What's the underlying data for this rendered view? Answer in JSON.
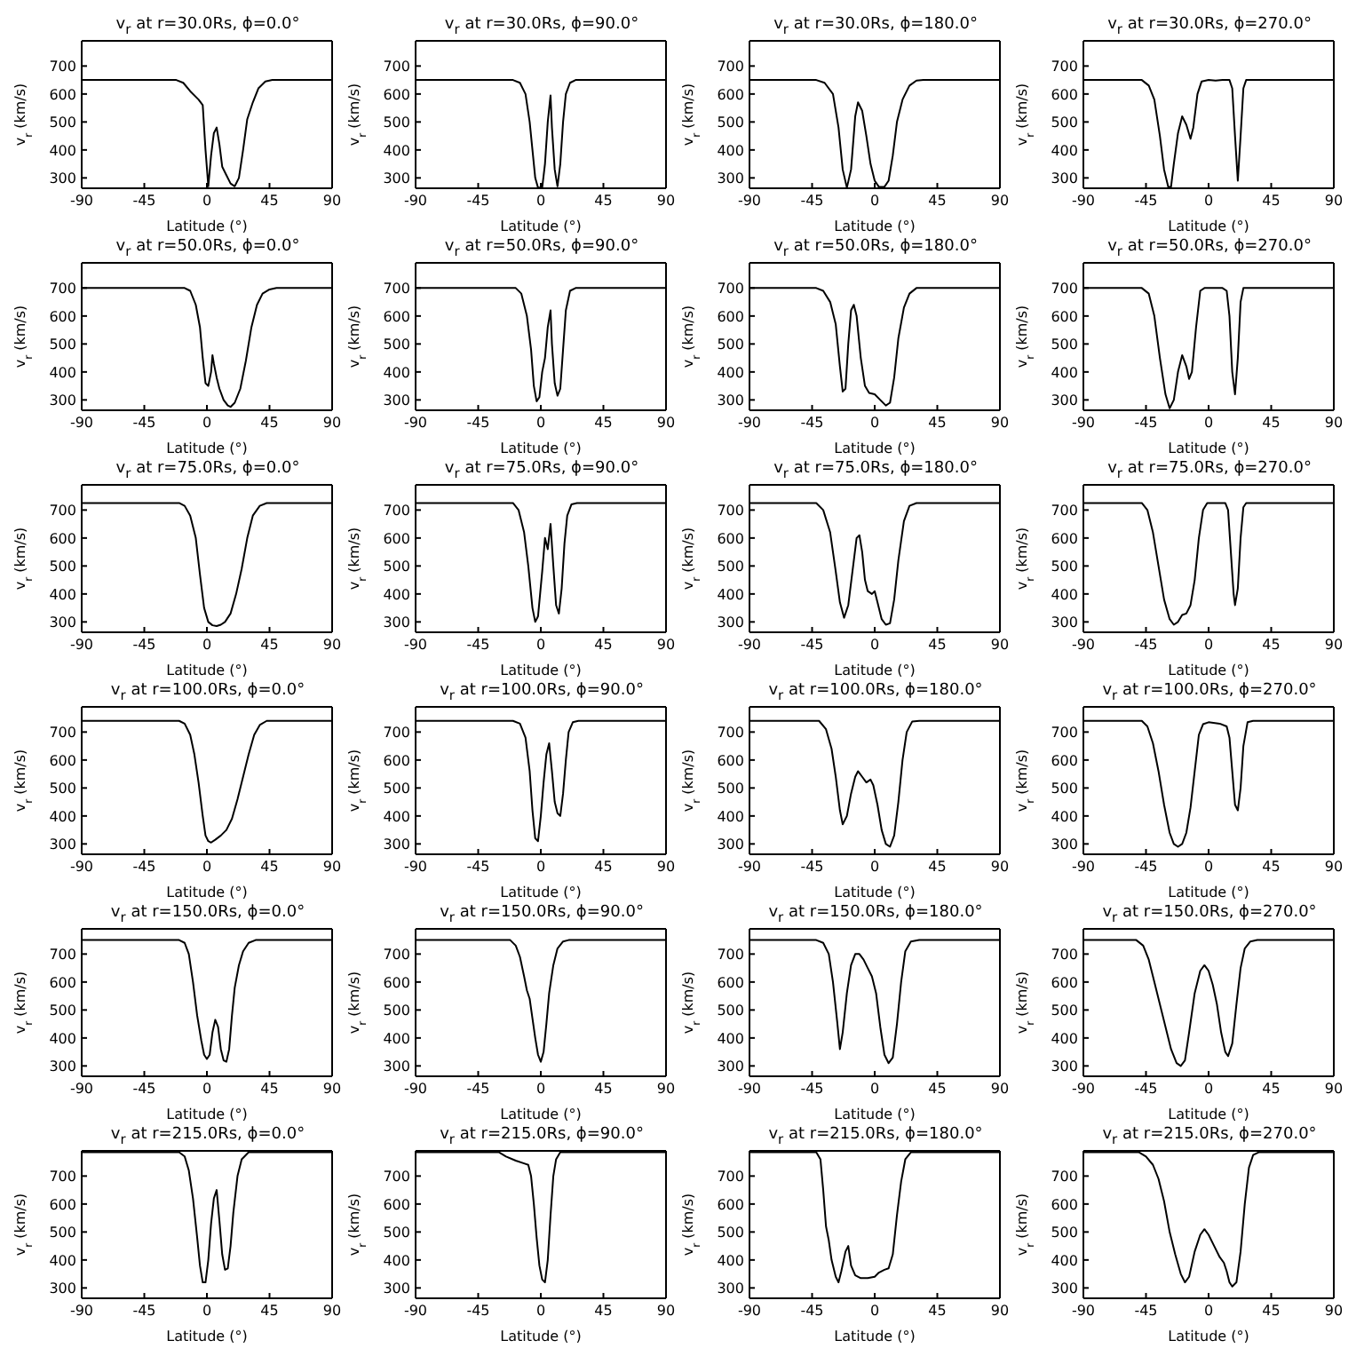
{
  "chart_data": [
    {
      "type": "line",
      "title": "v$_{r}$ at r=30.0Rs, ϕ=0.0°",
      "xlabel": "Latitude (°)",
      "ylabel": "v$_{r}$ (km/s)",
      "xlim": [
        -90,
        90
      ],
      "xticks": [
        -90,
        -45,
        0,
        45,
        90
      ],
      "ylim": [
        263,
        790
      ],
      "yticks": [
        300,
        400,
        500,
        600,
        700
      ],
      "marker": "none",
      "color": "#000000",
      "x": [
        -90,
        -22,
        -17,
        -12,
        -6,
        -3,
        -1,
        1,
        3,
        5,
        7,
        9,
        11,
        14,
        17,
        20,
        23,
        26,
        29,
        33,
        37,
        42,
        47,
        90
      ],
      "values": [
        650,
        650,
        640,
        610,
        580,
        560,
        400,
        270,
        380,
        460,
        480,
        420,
        340,
        310,
        280,
        270,
        300,
        400,
        510,
        570,
        620,
        645,
        650,
        650
      ]
    },
    {
      "type": "line",
      "title": "v$_{r}$ at r=30.0Rs, ϕ=90.0°",
      "xlabel": "Latitude (°)",
      "ylabel": "v$_{r}$ (km/s)",
      "xlim": [
        -90,
        90
      ],
      "xticks": [
        -90,
        -45,
        0,
        45,
        90
      ],
      "ylim": [
        263,
        790
      ],
      "yticks": [
        300,
        400,
        500,
        600,
        700
      ],
      "marker": "none",
      "color": "#000000",
      "x": [
        -90,
        -20,
        -15,
        -11,
        -8,
        -6,
        -4,
        -2,
        1,
        3,
        5,
        7,
        8,
        10,
        12,
        14,
        16,
        18,
        21,
        25,
        90
      ],
      "values": [
        650,
        650,
        640,
        600,
        500,
        400,
        300,
        265,
        265,
        350,
        500,
        595,
        480,
        330,
        270,
        350,
        500,
        600,
        640,
        650,
        650
      ]
    },
    {
      "type": "line",
      "title": "v$_{r}$ at r=30.0Rs, ϕ=180.0°",
      "xlabel": "Latitude (°)",
      "ylabel": "v$_{r}$ (km/s)",
      "xlim": [
        -90,
        90
      ],
      "xticks": [
        -90,
        -45,
        0,
        45,
        90
      ],
      "ylim": [
        263,
        790
      ],
      "yticks": [
        300,
        400,
        500,
        600,
        700
      ],
      "marker": "none",
      "color": "#000000",
      "x": [
        -90,
        -42,
        -36,
        -30,
        -26,
        -23,
        -20,
        -17,
        -14,
        -12,
        -9,
        -6,
        -3,
        0,
        3,
        7,
        10,
        13,
        16,
        20,
        25,
        30,
        35,
        90
      ],
      "values": [
        650,
        650,
        640,
        600,
        480,
        330,
        265,
        330,
        520,
        570,
        540,
        450,
        350,
        290,
        268,
        268,
        290,
        380,
        500,
        580,
        630,
        648,
        650,
        650
      ]
    },
    {
      "type": "line",
      "title": "v$_{r}$ at r=30.0Rs, ϕ=270.0°",
      "xlabel": "Latitude (°)",
      "ylabel": "v$_{r}$ (km/s)",
      "xlim": [
        -90,
        90
      ],
      "xticks": [
        -90,
        -45,
        0,
        45,
        90
      ],
      "ylim": [
        263,
        790
      ],
      "yticks": [
        300,
        400,
        500,
        600,
        700
      ],
      "marker": "none",
      "color": "#000000",
      "x": [
        -90,
        -48,
        -43,
        -39,
        -35,
        -32,
        -29,
        -27,
        -25,
        -22,
        -19,
        -16,
        -13,
        -11,
        -8,
        -5,
        0,
        5,
        10,
        15,
        17,
        19,
        21,
        23,
        25,
        27,
        90
      ],
      "values": [
        650,
        650,
        630,
        580,
        450,
        330,
        268,
        268,
        350,
        460,
        520,
        490,
        440,
        480,
        600,
        645,
        650,
        648,
        650,
        650,
        620,
        450,
        290,
        450,
        620,
        650,
        650
      ]
    },
    {
      "type": "line",
      "title": "v$_{r}$ at r=50.0Rs, ϕ=0.0°",
      "xlabel": "Latitude (°)",
      "ylabel": "v$_{r}$ (km/s)",
      "xlim": [
        -90,
        90
      ],
      "xticks": [
        -90,
        -45,
        0,
        45,
        90
      ],
      "ylim": [
        263,
        790
      ],
      "yticks": [
        300,
        400,
        500,
        600,
        700
      ],
      "marker": "none",
      "color": "#000000",
      "x": [
        -90,
        -16,
        -12,
        -8,
        -5,
        -3,
        -1,
        1,
        3,
        4,
        5,
        7,
        9,
        12,
        15,
        17,
        20,
        24,
        28,
        32,
        36,
        40,
        45,
        50,
        90
      ],
      "values": [
        700,
        700,
        690,
        640,
        560,
        450,
        360,
        350,
        400,
        460,
        430,
        380,
        340,
        300,
        280,
        275,
        290,
        340,
        440,
        560,
        640,
        680,
        695,
        700,
        700
      ]
    },
    {
      "type": "line",
      "title": "v$_{r}$ at r=50.0Rs, ϕ=90.0°",
      "xlabel": "Latitude (°)",
      "ylabel": "v$_{r}$ (km/s)",
      "xlim": [
        -90,
        90
      ],
      "xticks": [
        -90,
        -45,
        0,
        45,
        90
      ],
      "ylim": [
        263,
        790
      ],
      "yticks": [
        300,
        400,
        500,
        600,
        700
      ],
      "marker": "none",
      "color": "#000000",
      "x": [
        -90,
        -18,
        -14,
        -10,
        -7,
        -5,
        -3,
        -1,
        1,
        3,
        5,
        7,
        8,
        10,
        12,
        14,
        16,
        18,
        21,
        25,
        90
      ],
      "values": [
        700,
        700,
        680,
        600,
        480,
        350,
        295,
        310,
        400,
        450,
        560,
        620,
        500,
        360,
        315,
        340,
        480,
        620,
        690,
        700,
        700
      ]
    },
    {
      "type": "line",
      "title": "v$_{r}$ at r=50.0Rs, ϕ=180.0°",
      "xlabel": "Latitude (°)",
      "ylabel": "v$_{r}$ (km/s)",
      "xlim": [
        -90,
        90
      ],
      "xticks": [
        -90,
        -45,
        0,
        45,
        90
      ],
      "ylim": [
        263,
        790
      ],
      "yticks": [
        300,
        400,
        500,
        600,
        700
      ],
      "marker": "none",
      "color": "#000000",
      "x": [
        -90,
        -42,
        -37,
        -32,
        -28,
        -25,
        -23,
        -21,
        -19,
        -17,
        -15,
        -13,
        -10,
        -7,
        -4,
        0,
        4,
        8,
        11,
        14,
        17,
        21,
        25,
        30,
        90
      ],
      "values": [
        700,
        700,
        690,
        650,
        570,
        420,
        330,
        340,
        500,
        620,
        640,
        600,
        450,
        350,
        325,
        320,
        300,
        280,
        290,
        380,
        520,
        630,
        680,
        700,
        700
      ]
    },
    {
      "type": "line",
      "title": "v$_{r}$ at r=50.0Rs, ϕ=270.0°",
      "xlabel": "Latitude (°)",
      "ylabel": "v$_{r}$ (km/s)",
      "xlim": [
        -90,
        90
      ],
      "xticks": [
        -90,
        -45,
        0,
        45,
        90
      ],
      "ylim": [
        263,
        790
      ],
      "yticks": [
        300,
        400,
        500,
        600,
        700
      ],
      "marker": "none",
      "color": "#000000",
      "x": [
        -90,
        -48,
        -43,
        -39,
        -35,
        -31,
        -28,
        -25,
        -22,
        -19,
        -16,
        -14,
        -12,
        -9,
        -6,
        -3,
        10,
        13,
        15,
        17,
        19,
        21,
        23,
        25,
        90
      ],
      "values": [
        700,
        700,
        680,
        600,
        450,
        320,
        270,
        300,
        400,
        460,
        420,
        375,
        400,
        560,
        690,
        700,
        700,
        690,
        600,
        400,
        320,
        450,
        650,
        700,
        700
      ]
    },
    {
      "type": "line",
      "title": "v$_{r}$ at r=75.0Rs, ϕ=0.0°",
      "xlabel": "Latitude (°)",
      "ylabel": "v$_{r}$ (km/s)",
      "xlim": [
        -90,
        90
      ],
      "xticks": [
        -90,
        -45,
        0,
        45,
        90
      ],
      "ylim": [
        263,
        790
      ],
      "yticks": [
        300,
        400,
        500,
        600,
        700
      ],
      "marker": "none",
      "color": "#000000",
      "x": [
        -90,
        -20,
        -16,
        -12,
        -8,
        -5,
        -2,
        1,
        4,
        7,
        10,
        13,
        17,
        21,
        25,
        29,
        33,
        38,
        43,
        90
      ],
      "values": [
        725,
        725,
        715,
        680,
        600,
        470,
        350,
        300,
        288,
        285,
        290,
        300,
        330,
        400,
        490,
        600,
        680,
        715,
        725,
        725
      ]
    },
    {
      "type": "line",
      "title": "v$_{r}$ at r=75.0Rs, ϕ=90.0°",
      "xlabel": "Latitude (°)",
      "ylabel": "v$_{r}$ (km/s)",
      "xlim": [
        -90,
        90
      ],
      "xticks": [
        -90,
        -45,
        0,
        45,
        90
      ],
      "ylim": [
        263,
        790
      ],
      "yticks": [
        300,
        400,
        500,
        600,
        700
      ],
      "marker": "none",
      "color": "#000000",
      "x": [
        -90,
        -20,
        -16,
        -12,
        -9,
        -6,
        -4,
        -2,
        1,
        3,
        5,
        7,
        9,
        11,
        13,
        15,
        17,
        19,
        22,
        26,
        90
      ],
      "values": [
        725,
        725,
        700,
        620,
        500,
        350,
        300,
        320,
        480,
        600,
        560,
        650,
        500,
        360,
        330,
        420,
        580,
        680,
        720,
        725,
        725
      ]
    },
    {
      "type": "line",
      "title": "v$_{r}$ at r=75.0Rs, ϕ=180.0°",
      "xlabel": "Latitude (°)",
      "ylabel": "v$_{r}$ (km/s)",
      "xlim": [
        -90,
        90
      ],
      "xticks": [
        -90,
        -45,
        0,
        45,
        90
      ],
      "ylim": [
        263,
        790
      ],
      "yticks": [
        300,
        400,
        500,
        600,
        700
      ],
      "marker": "none",
      "color": "#000000",
      "x": [
        -90,
        -42,
        -37,
        -32,
        -28,
        -25,
        -22,
        -19,
        -16,
        -13,
        -11,
        -9,
        -7,
        -5,
        -2,
        0,
        2,
        5,
        8,
        11,
        14,
        17,
        21,
        25,
        30,
        90
      ],
      "values": [
        725,
        725,
        700,
        620,
        480,
        370,
        315,
        360,
        480,
        600,
        610,
        550,
        450,
        410,
        400,
        410,
        370,
        310,
        290,
        295,
        380,
        520,
        660,
        715,
        725,
        725
      ]
    },
    {
      "type": "line",
      "title": "v$_{r}$ at r=75.0Rs, ϕ=270.0°",
      "xlabel": "Latitude (°)",
      "ylabel": "v$_{r}$ (km/s)",
      "xlim": [
        -90,
        90
      ],
      "xticks": [
        -90,
        -45,
        0,
        45,
        90
      ],
      "ylim": [
        263,
        790
      ],
      "yticks": [
        300,
        400,
        500,
        600,
        700
      ],
      "marker": "none",
      "color": "#000000",
      "x": [
        -90,
        -48,
        -44,
        -40,
        -36,
        -32,
        -28,
        -25,
        -22,
        -19,
        -16,
        -13,
        -10,
        -7,
        -4,
        -1,
        12,
        14,
        16,
        18,
        19,
        21,
        23,
        25,
        27,
        90
      ],
      "values": [
        725,
        725,
        700,
        620,
        500,
        380,
        310,
        290,
        300,
        325,
        330,
        360,
        450,
        600,
        700,
        725,
        725,
        700,
        550,
        400,
        360,
        420,
        600,
        710,
        725,
        725
      ]
    },
    {
      "type": "line",
      "title": "v$_{r}$ at r=100.0Rs, ϕ=0.0°",
      "xlabel": "Latitude (°)",
      "ylabel": "v$_{r}$ (km/s)",
      "xlim": [
        -90,
        90
      ],
      "xticks": [
        -90,
        -45,
        0,
        45,
        90
      ],
      "ylim": [
        263,
        790
      ],
      "yticks": [
        300,
        400,
        500,
        600,
        700
      ],
      "marker": "none",
      "color": "#000000",
      "x": [
        -90,
        -20,
        -16,
        -12,
        -9,
        -6,
        -3,
        -1,
        1,
        3,
        6,
        10,
        14,
        18,
        22,
        26,
        30,
        34,
        38,
        43,
        90
      ],
      "values": [
        740,
        740,
        730,
        690,
        620,
        520,
        400,
        330,
        310,
        305,
        315,
        330,
        350,
        390,
        460,
        540,
        620,
        690,
        725,
        740,
        740
      ]
    },
    {
      "type": "line",
      "title": "v$_{r}$ at r=100.0Rs, ϕ=90.0°",
      "xlabel": "Latitude (°)",
      "ylabel": "v$_{r}$ (km/s)",
      "xlim": [
        -90,
        90
      ],
      "xticks": [
        -90,
        -45,
        0,
        45,
        90
      ],
      "ylim": [
        263,
        790
      ],
      "yticks": [
        300,
        400,
        500,
        600,
        700
      ],
      "marker": "none",
      "color": "#000000",
      "x": [
        -90,
        -20,
        -15,
        -11,
        -8,
        -6,
        -4,
        -2,
        0,
        2,
        4,
        6,
        8,
        10,
        12,
        14,
        16,
        18,
        20,
        23,
        27,
        90
      ],
      "values": [
        740,
        740,
        730,
        680,
        560,
        420,
        320,
        310,
        400,
        520,
        620,
        660,
        560,
        450,
        410,
        400,
        480,
        600,
        700,
        735,
        740,
        740
      ]
    },
    {
      "type": "line",
      "title": "v$_{r}$ at r=100.0Rs, ϕ=180.0°",
      "xlabel": "Latitude (°)",
      "ylabel": "v$_{r}$ (km/s)",
      "xlim": [
        -90,
        90
      ],
      "xticks": [
        -90,
        -45,
        0,
        45,
        90
      ],
      "ylim": [
        263,
        790
      ],
      "yticks": [
        300,
        400,
        500,
        600,
        700
      ],
      "marker": "none",
      "color": "#000000",
      "x": [
        -90,
        -40,
        -35,
        -31,
        -28,
        -25,
        -23,
        -20,
        -17,
        -14,
        -12,
        -9,
        -6,
        -3,
        -1,
        2,
        5,
        8,
        11,
        14,
        17,
        20,
        23,
        27,
        32,
        90
      ],
      "values": [
        740,
        740,
        710,
        640,
        540,
        420,
        370,
        400,
        480,
        540,
        560,
        540,
        520,
        530,
        510,
        440,
        350,
        300,
        290,
        330,
        450,
        600,
        700,
        738,
        740,
        740
      ]
    },
    {
      "type": "line",
      "title": "v$_{r}$ at r=100.0Rs, ϕ=270.0°",
      "xlabel": "Latitude (°)",
      "ylabel": "v$_{r}$ (km/s)",
      "xlim": [
        -90,
        90
      ],
      "xticks": [
        -90,
        -45,
        0,
        45,
        90
      ],
      "ylim": [
        263,
        790
      ],
      "yticks": [
        300,
        400,
        500,
        600,
        700
      ],
      "marker": "none",
      "color": "#000000",
      "x": [
        -90,
        -48,
        -44,
        -40,
        -36,
        -32,
        -28,
        -25,
        -22,
        -19,
        -16,
        -13,
        -10,
        -7,
        -4,
        0,
        8,
        13,
        15,
        17,
        19,
        21,
        23,
        25,
        28,
        32,
        90
      ],
      "values": [
        740,
        740,
        720,
        660,
        560,
        440,
        340,
        300,
        290,
        300,
        340,
        430,
        560,
        690,
        728,
        735,
        730,
        720,
        680,
        560,
        440,
        420,
        500,
        650,
        735,
        740,
        740
      ]
    },
    {
      "type": "line",
      "title": "v$_{r}$ at r=150.0Rs, ϕ=0.0°",
      "xlabel": "Latitude (°)",
      "ylabel": "v$_{r}$ (km/s)",
      "xlim": [
        -90,
        90
      ],
      "xticks": [
        -90,
        -45,
        0,
        45,
        90
      ],
      "ylim": [
        263,
        790
      ],
      "yticks": [
        300,
        400,
        500,
        600,
        700
      ],
      "marker": "none",
      "color": "#000000",
      "x": [
        -90,
        -20,
        -16,
        -13,
        -10,
        -7,
        -4,
        -2,
        0,
        2,
        4,
        6,
        8,
        10,
        12,
        14,
        16,
        18,
        20,
        23,
        26,
        30,
        35,
        90
      ],
      "values": [
        750,
        750,
        740,
        700,
        600,
        480,
        390,
        340,
        325,
        340,
        420,
        465,
        440,
        360,
        320,
        315,
        360,
        480,
        580,
        660,
        710,
        740,
        750,
        750
      ]
    },
    {
      "type": "line",
      "title": "v$_{r}$ at r=150.0Rs, ϕ=90.0°",
      "xlabel": "Latitude (°)",
      "ylabel": "v$_{r}$ (km/s)",
      "xlim": [
        -90,
        90
      ],
      "xticks": [
        -90,
        -45,
        0,
        45,
        90
      ],
      "ylim": [
        263,
        790
      ],
      "yticks": [
        300,
        400,
        500,
        600,
        700
      ],
      "marker": "none",
      "color": "#000000",
      "x": [
        -90,
        -22,
        -18,
        -15,
        -12,
        -10,
        -8,
        -6,
        -4,
        -2,
        0,
        2,
        4,
        6,
        9,
        12,
        16,
        20,
        90
      ],
      "values": [
        750,
        750,
        730,
        690,
        620,
        570,
        540,
        470,
        400,
        340,
        315,
        350,
        450,
        560,
        660,
        720,
        745,
        750,
        750
      ]
    },
    {
      "type": "line",
      "title": "v$_{r}$ at r=150.0Rs, ϕ=180.0°",
      "xlabel": "Latitude (°)",
      "ylabel": "v$_{r}$ (km/s)",
      "xlim": [
        -90,
        90
      ],
      "xticks": [
        -90,
        -45,
        0,
        45,
        90
      ],
      "ylim": [
        263,
        790
      ],
      "yticks": [
        300,
        400,
        500,
        600,
        700
      ],
      "marker": "none",
      "color": "#000000",
      "x": [
        -90,
        -42,
        -37,
        -33,
        -30,
        -27,
        -25,
        -23,
        -20,
        -17,
        -14,
        -11,
        -8,
        -5,
        -2,
        1,
        4,
        7,
        10,
        13,
        16,
        19,
        22,
        26,
        32,
        90
      ],
      "values": [
        750,
        750,
        740,
        700,
        600,
        460,
        360,
        420,
        560,
        660,
        700,
        700,
        680,
        650,
        620,
        560,
        440,
        340,
        310,
        330,
        450,
        600,
        710,
        745,
        750,
        750
      ]
    },
    {
      "type": "line",
      "title": "v$_{r}$ at r=150.0Rs, ϕ=270.0°",
      "xlabel": "Latitude (°)",
      "ylabel": "v$_{r}$ (km/s)",
      "xlim": [
        -90,
        90
      ],
      "xticks": [
        -90,
        -45,
        0,
        45,
        90
      ],
      "ylim": [
        263,
        790
      ],
      "yticks": [
        300,
        400,
        500,
        600,
        700
      ],
      "marker": "none",
      "color": "#000000",
      "x": [
        -90,
        -52,
        -47,
        -43,
        -39,
        -35,
        -31,
        -27,
        -23,
        -20,
        -17,
        -14,
        -10,
        -6,
        -3,
        0,
        3,
        6,
        9,
        12,
        14,
        17,
        20,
        23,
        26,
        30,
        35,
        90
      ],
      "values": [
        750,
        750,
        730,
        680,
        600,
        520,
        440,
        360,
        310,
        300,
        320,
        420,
        560,
        640,
        660,
        640,
        590,
        520,
        420,
        350,
        335,
        380,
        520,
        650,
        720,
        745,
        750,
        750
      ]
    },
    {
      "type": "line",
      "title": "v$_{r}$ at r=215.0Rs, ϕ=0.0°",
      "xlabel": "Latitude (°)",
      "ylabel": "v$_{r}$ (km/s)",
      "xlim": [
        -90,
        90
      ],
      "xticks": [
        -90,
        -45,
        0,
        45,
        90
      ],
      "ylim": [
        263,
        790
      ],
      "yticks": [
        300,
        400,
        500,
        600,
        700
      ],
      "marker": "none",
      "color": "#000000",
      "x": [
        -90,
        -20,
        -16,
        -13,
        -10,
        -7,
        -5,
        -3,
        -1,
        1,
        3,
        5,
        7,
        9,
        11,
        13,
        15,
        17,
        19,
        22,
        25,
        30,
        90
      ],
      "values": [
        785,
        785,
        770,
        720,
        620,
        480,
        380,
        320,
        320,
        400,
        530,
        620,
        650,
        540,
        420,
        365,
        370,
        450,
        570,
        700,
        760,
        785,
        785
      ]
    },
    {
      "type": "line",
      "title": "v$_{r}$ at r=215.0Rs, ϕ=90.0°",
      "xlabel": "Latitude (°)",
      "ylabel": "v$_{r}$ (km/s)",
      "xlim": [
        -90,
        90
      ],
      "xticks": [
        -90,
        -45,
        0,
        45,
        90
      ],
      "ylim": [
        263,
        790
      ],
      "yticks": [
        300,
        400,
        500,
        600,
        700
      ],
      "marker": "none",
      "color": "#000000",
      "x": [
        -90,
        -30,
        -25,
        -18,
        -12,
        -9,
        -7,
        -5,
        -3,
        -1,
        1,
        3,
        5,
        7,
        9,
        11,
        14,
        90
      ],
      "values": [
        785,
        785,
        770,
        755,
        745,
        740,
        700,
        600,
        480,
        380,
        330,
        320,
        400,
        560,
        700,
        760,
        785,
        785
      ]
    },
    {
      "type": "line",
      "title": "v$_{r}$ at r=215.0Rs, ϕ=180.0°",
      "xlabel": "Latitude (°)",
      "ylabel": "v$_{r}$ (km/s)",
      "xlim": [
        -90,
        90
      ],
      "xticks": [
        -90,
        -45,
        0,
        45,
        90
      ],
      "ylim": [
        263,
        790
      ],
      "yticks": [
        300,
        400,
        500,
        600,
        700
      ],
      "marker": "none",
      "color": "#000000",
      "x": [
        -90,
        -42,
        -39,
        -37,
        -35,
        -33,
        -31,
        -28,
        -26,
        -24,
        -21,
        -19,
        -17,
        -14,
        -10,
        -5,
        0,
        3,
        7,
        10,
        13,
        16,
        19,
        22,
        26,
        90
      ],
      "values": [
        785,
        785,
        760,
        650,
        520,
        470,
        400,
        340,
        320,
        360,
        430,
        450,
        380,
        345,
        335,
        335,
        340,
        355,
        365,
        370,
        420,
        560,
        680,
        760,
        785,
        785
      ]
    },
    {
      "type": "line",
      "title": "v$_{r}$ at r=215.0Rs, ϕ=270.0°",
      "xlabel": "Latitude (°)",
      "ylabel": "v$_{r}$ (km/s)",
      "xlim": [
        -90,
        90
      ],
      "xticks": [
        -90,
        -45,
        0,
        45,
        90
      ],
      "ylim": [
        263,
        790
      ],
      "yticks": [
        300,
        400,
        500,
        600,
        700
      ],
      "marker": "none",
      "color": "#000000",
      "x": [
        -90,
        -50,
        -45,
        -40,
        -36,
        -32,
        -28,
        -24,
        -20,
        -17,
        -14,
        -10,
        -6,
        -3,
        0,
        4,
        8,
        11,
        13,
        15,
        17,
        20,
        23,
        26,
        29,
        32,
        36,
        90
      ],
      "values": [
        785,
        785,
        770,
        740,
        690,
        610,
        500,
        420,
        350,
        320,
        340,
        430,
        490,
        510,
        490,
        450,
        410,
        390,
        360,
        320,
        305,
        320,
        430,
        600,
        730,
        775,
        785,
        785
      ]
    }
  ]
}
